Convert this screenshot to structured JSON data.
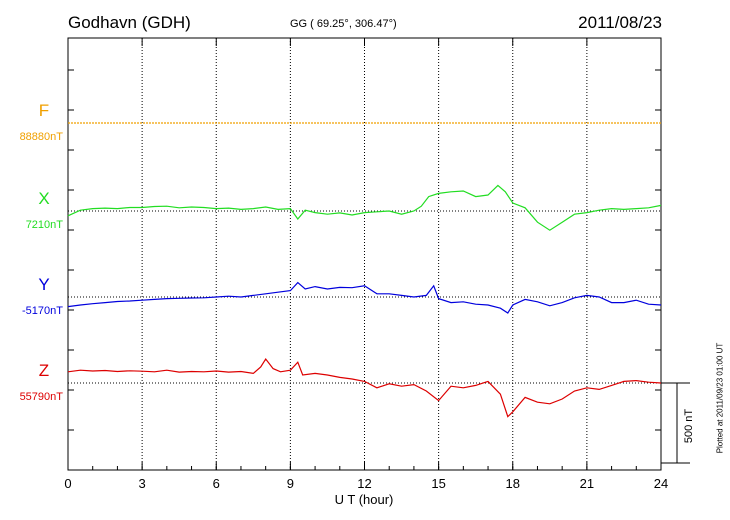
{
  "header": {
    "station": "Godhavn (GDH)",
    "coords": "GG ( 69.25°, 306.47°)",
    "date": "2011/08/23"
  },
  "footer": {
    "plotted": "Plotted at 2011/09/23 01:00 UT"
  },
  "chart_data": {
    "type": "line",
    "xlabel": "U T (hour)",
    "xlim": [
      0,
      24
    ],
    "xticks": [
      "0",
      "3",
      "6",
      "9",
      "12",
      "15",
      "18",
      "21",
      "24"
    ],
    "grid": true,
    "scale_bar": {
      "value": 500,
      "label": "500 nT"
    },
    "series": [
      {
        "name": "F",
        "baseline_label": "88880nT",
        "baseline": 88880,
        "color": "#f0a000",
        "x": [
          0,
          24
        ],
        "y": [
          88880,
          88880
        ]
      },
      {
        "name": "X",
        "baseline_label": "7210nT",
        "baseline": 7210,
        "color": "#22dd22",
        "x": [
          0,
          0.5,
          1,
          1.5,
          2,
          2.5,
          3,
          3.5,
          4,
          4.5,
          5,
          5.5,
          6,
          6.5,
          7,
          7.5,
          8,
          8.5,
          9,
          9.3,
          9.6,
          10,
          10.5,
          11,
          11.5,
          12,
          12.5,
          13,
          13.5,
          14,
          14.3,
          14.6,
          15,
          15.5,
          16,
          16.5,
          17,
          17.4,
          17.7,
          18,
          18.5,
          19,
          19.5,
          20,
          20.5,
          21,
          21.5,
          22,
          22.5,
          23,
          23.5,
          24
        ],
        "y": [
          7180,
          7215,
          7225,
          7228,
          7225,
          7232,
          7232,
          7238,
          7240,
          7230,
          7235,
          7232,
          7225,
          7228,
          7220,
          7225,
          7235,
          7220,
          7225,
          7160,
          7215,
          7200,
          7190,
          7198,
          7185,
          7200,
          7205,
          7210,
          7190,
          7210,
          7240,
          7300,
          7320,
          7330,
          7335,
          7300,
          7310,
          7370,
          7330,
          7260,
          7230,
          7140,
          7090,
          7140,
          7190,
          7200,
          7215,
          7225,
          7220,
          7225,
          7230,
          7245
        ]
      },
      {
        "name": "Y",
        "baseline_label": "-5170nT",
        "baseline": -5170,
        "color": "#0000dd",
        "x": [
          0,
          0.5,
          1,
          1.5,
          2,
          2.5,
          3,
          3.5,
          4,
          4.5,
          5,
          5.5,
          6,
          6.5,
          7,
          7.5,
          8,
          8.5,
          9,
          9.3,
          9.6,
          10,
          10.5,
          11,
          11.5,
          12,
          12.5,
          13,
          13.5,
          14,
          14.5,
          14.8,
          15,
          15.5,
          16,
          16.5,
          17,
          17.5,
          17.8,
          18,
          18.5,
          19,
          19.5,
          20,
          20.5,
          21,
          21.5,
          22,
          22.5,
          23,
          23.5,
          24
        ],
        "y": [
          -5230,
          -5220,
          -5212,
          -5205,
          -5198,
          -5195,
          -5190,
          -5185,
          -5180,
          -5178,
          -5176,
          -5175,
          -5170,
          -5165,
          -5170,
          -5160,
          -5150,
          -5140,
          -5130,
          -5080,
          -5120,
          -5105,
          -5120,
          -5110,
          -5112,
          -5100,
          -5150,
          -5150,
          -5160,
          -5170,
          -5160,
          -5100,
          -5180,
          -5205,
          -5200,
          -5215,
          -5220,
          -5240,
          -5270,
          -5220,
          -5185,
          -5200,
          -5225,
          -5205,
          -5175,
          -5160,
          -5170,
          -5205,
          -5205,
          -5190,
          -5215,
          -5220
        ]
      },
      {
        "name": "Z",
        "baseline_label": "55790nT",
        "baseline": 55790,
        "color": "#dd0000",
        "x": [
          0,
          0.5,
          1,
          1.5,
          2,
          2.5,
          3,
          3.5,
          4,
          4.5,
          5,
          5.5,
          6,
          6.5,
          7,
          7.5,
          7.8,
          8,
          8.3,
          8.6,
          9,
          9.3,
          9.5,
          10,
          10.5,
          11,
          11.5,
          12,
          12.5,
          13,
          13.5,
          14,
          14.5,
          15,
          15.5,
          16,
          16.5,
          17,
          17.5,
          17.8,
          18,
          18.5,
          19,
          19.5,
          20,
          20.5,
          21,
          21.5,
          22,
          22.5,
          23,
          23.5,
          24
        ],
        "y": [
          55860,
          55870,
          55865,
          55868,
          55862,
          55866,
          55864,
          55860,
          55870,
          55858,
          55862,
          55860,
          55865,
          55858,
          55862,
          55850,
          55890,
          55940,
          55880,
          55860,
          55870,
          55920,
          55840,
          55850,
          55840,
          55825,
          55815,
          55800,
          55760,
          55785,
          55770,
          55780,
          55740,
          55680,
          55770,
          55760,
          55775,
          55800,
          55720,
          55580,
          55610,
          55700,
          55670,
          55660,
          55690,
          55740,
          55760,
          55750,
          55775,
          55800,
          55805,
          55795,
          55790
        ]
      }
    ]
  }
}
